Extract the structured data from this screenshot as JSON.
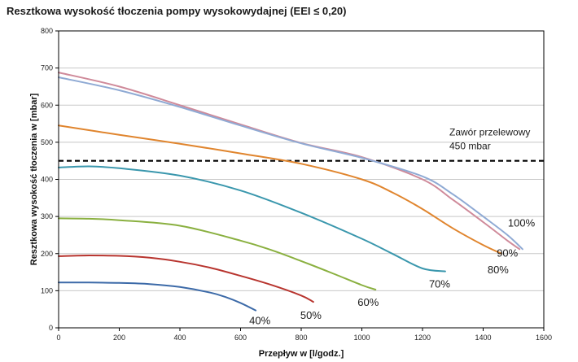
{
  "chart_data": {
    "type": "line",
    "title": "Resztkowa wysokość tłoczenia pompy wysokowydajnej (EEI ≤ 0,20)",
    "xlabel": "Przepływ w [l/godz.]",
    "ylabel": "Resztkowa wysokość tłoczenia w [mbar]",
    "xlim": [
      0,
      1600
    ],
    "ylim": [
      0,
      800
    ],
    "xticks": [
      0,
      200,
      400,
      600,
      800,
      1000,
      1200,
      1400,
      1600
    ],
    "yticks": [
      0,
      100,
      200,
      300,
      400,
      500,
      600,
      700,
      800
    ],
    "grid": "horizontal",
    "reference_line": {
      "y": 450,
      "label_line1": "Zawór przelewowy",
      "label_line2": "450 mbar",
      "color": "#000000"
    },
    "series": [
      {
        "name": "100%",
        "color": "#8faad4",
        "x": [
          0,
          200,
          400,
          600,
          800,
          1000,
          1200,
          1300,
          1400,
          1480,
          1530
        ],
        "y": [
          675,
          640,
          595,
          545,
          497,
          458,
          408,
          360,
          300,
          250,
          212
        ]
      },
      {
        "name": "90%",
        "color": "#cf8a9a",
        "x": [
          0,
          200,
          400,
          600,
          800,
          1000,
          1200,
          1300,
          1400,
          1480,
          1520
        ],
        "y": [
          688,
          650,
          600,
          548,
          498,
          460,
          400,
          345,
          285,
          235,
          212
        ]
      },
      {
        "name": "80%",
        "color": "#e0852e",
        "x": [
          0,
          200,
          400,
          600,
          800,
          1000,
          1100,
          1200,
          1300,
          1400,
          1460
        ],
        "y": [
          545,
          520,
          496,
          470,
          442,
          400,
          365,
          320,
          268,
          223,
          200
        ]
      },
      {
        "name": "70%",
        "color": "#3a97ad",
        "x": [
          0,
          100,
          200,
          400,
          600,
          800,
          1000,
          1100,
          1200,
          1275
        ],
        "y": [
          432,
          435,
          430,
          410,
          370,
          310,
          240,
          200,
          160,
          152
        ]
      },
      {
        "name": "60%",
        "color": "#8ab040",
        "x": [
          0,
          100,
          200,
          400,
          600,
          700,
          800,
          900,
          1000,
          1045
        ],
        "y": [
          295,
          294,
          290,
          275,
          235,
          210,
          180,
          148,
          115,
          103
        ]
      },
      {
        "name": "50%",
        "color": "#b8352f",
        "x": [
          0,
          100,
          200,
          300,
          400,
          500,
          600,
          700,
          800,
          840
        ],
        "y": [
          193,
          195,
          194,
          189,
          178,
          162,
          140,
          116,
          87,
          70
        ]
      },
      {
        "name": "40%",
        "color": "#3c6aa8",
        "x": [
          0,
          100,
          200,
          300,
          400,
          500,
          550,
          600,
          650
        ],
        "y": [
          122,
          122,
          121,
          118,
          110,
          95,
          83,
          67,
          47
        ]
      }
    ]
  }
}
